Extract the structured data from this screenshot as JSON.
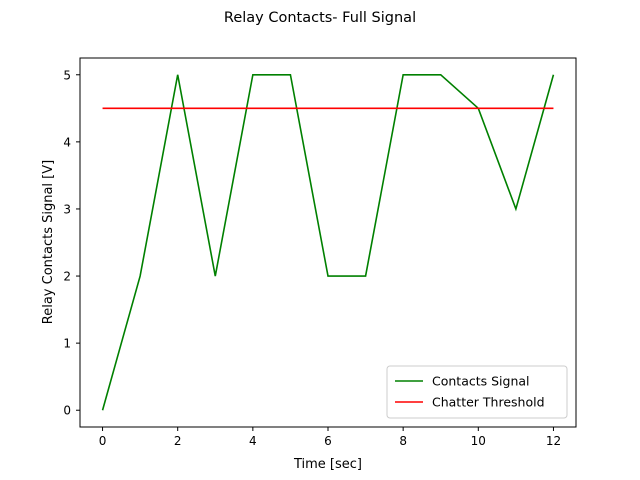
{
  "chart_data": {
    "type": "line",
    "title": "Relay Contacts- Full Signal",
    "xlabel": "Time [sec]",
    "ylabel": "Relay Contacts Signal [V]",
    "xlim": [
      -0.6,
      12.6
    ],
    "ylim": [
      -0.25,
      5.25
    ],
    "xticks": [
      0,
      2,
      4,
      6,
      8,
      10,
      12
    ],
    "yticks": [
      0,
      1,
      2,
      3,
      4,
      5
    ],
    "grid": false,
    "legend_position": "lower-right",
    "series": [
      {
        "name": "Contacts Signal",
        "color": "#008000",
        "x": [
          0,
          1,
          2,
          3,
          4,
          5,
          6,
          7,
          8,
          9,
          10,
          11,
          12
        ],
        "y": [
          0,
          2,
          5,
          2,
          5,
          5,
          2,
          2,
          5,
          5,
          4.5,
          3,
          5
        ]
      },
      {
        "name": "Chatter Threshold",
        "color": "#ff0000",
        "x": [
          0,
          12
        ],
        "y": [
          4.5,
          4.5
        ]
      }
    ]
  }
}
